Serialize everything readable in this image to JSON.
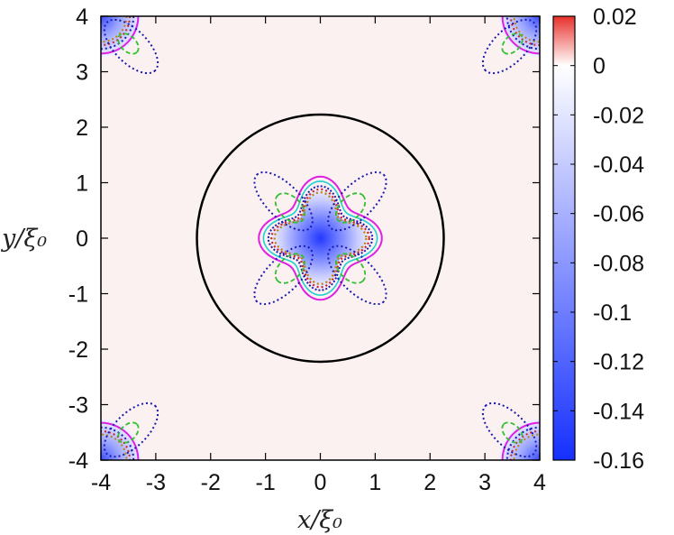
{
  "chart_data": {
    "type": "heatmap",
    "title": "",
    "xlabel": "x/ξ₀",
    "ylabel": "y/ξ₀",
    "xlim": [
      -4,
      4
    ],
    "ylim": [
      -4,
      4
    ],
    "x_ticks": [
      "-4",
      "-3",
      "-2",
      "-1",
      "0",
      "1",
      "2",
      "3",
      "4"
    ],
    "y_ticks": [
      "4",
      "3",
      "2",
      "1",
      "0",
      "-1",
      "-2",
      "-3",
      "-4"
    ],
    "colorbar": {
      "range": [
        -0.16,
        0.02
      ],
      "ticks": [
        "0.02",
        "0",
        "-0.02",
        "-0.04",
        "-0.06",
        "-0.08",
        "-0.1",
        "-0.12",
        "-0.14",
        "-0.16"
      ],
      "colors": {
        "max": "#e8302a",
        "zero": "#ffffff",
        "min": "#1530ff"
      }
    },
    "background_value": 0.002,
    "features": [
      {
        "kind": "vortex-core",
        "center": [
          0,
          0
        ],
        "min_value": -0.16,
        "shape": "four-lobed"
      },
      {
        "kind": "vortex-core",
        "center": [
          -4,
          4
        ],
        "min_value": -0.16
      },
      {
        "kind": "vortex-core",
        "center": [
          4,
          4
        ],
        "min_value": -0.16
      },
      {
        "kind": "vortex-core",
        "center": [
          -4,
          -4
        ],
        "min_value": -0.16
      },
      {
        "kind": "vortex-core",
        "center": [
          4,
          -4
        ],
        "min_value": -0.16
      }
    ],
    "circle": {
      "center": [
        0,
        0
      ],
      "radius": 2.25,
      "color": "#000000"
    },
    "contour_colors": [
      "#e020e0",
      "#20d0d0",
      "#30c030",
      "#1a1ab0",
      "#c08000",
      "#d02020"
    ]
  }
}
